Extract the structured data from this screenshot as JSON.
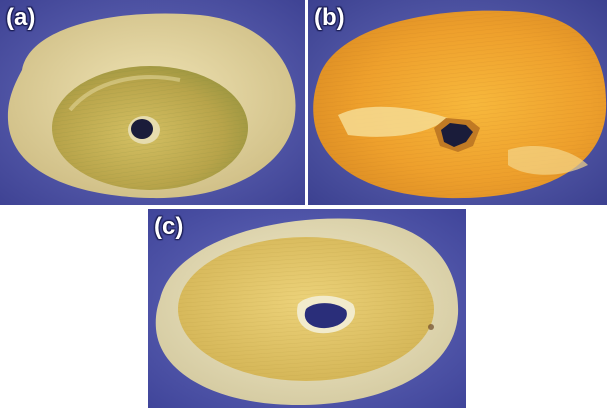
{
  "figure": {
    "panels": [
      {
        "label": "(a)"
      },
      {
        "label": "(b)"
      },
      {
        "label": "(c)"
      }
    ]
  },
  "colors": {
    "background_blue": "#5a5fb3",
    "ring_pale": "#e8dcaa",
    "disc_olive": "#c9b75a",
    "disc_gold": "#f0a530",
    "disc_pale_yellow": "#e6c963",
    "hole_dark": "#1a1c3a"
  }
}
